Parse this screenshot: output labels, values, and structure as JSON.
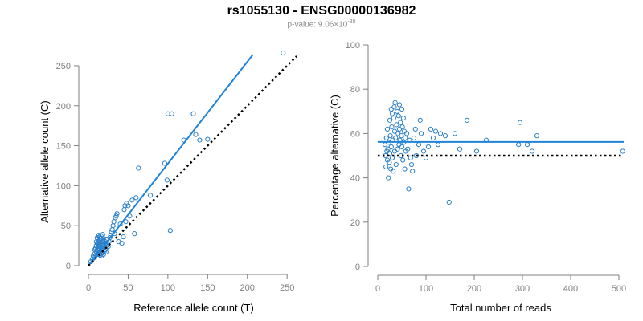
{
  "title": "rs1055130 - ENSG00000136982",
  "subtitle": {
    "prefix": "p-value: 9.06×10",
    "exponent": "-38"
  },
  "colors": {
    "accent": "#1f83d9",
    "points": "#2b7fc8",
    "axis": "#7f7f7f",
    "text": "#000000"
  },
  "chart_data": [
    {
      "type": "scatter",
      "xlabel": "Reference allele count (T)",
      "ylabel": "Alternative allele count (C)",
      "xlim": [
        0,
        265
      ],
      "ylim": [
        0,
        260
      ],
      "xticks": [
        0,
        50,
        100,
        150,
        200,
        250
      ],
      "yticks": [
        0,
        50,
        100,
        150,
        200,
        250
      ],
      "grid": false,
      "points": {
        "x": [
          3,
          5,
          6,
          7,
          8,
          8,
          9,
          9,
          10,
          10,
          10,
          11,
          11,
          11,
          11,
          12,
          12,
          12,
          12,
          13,
          13,
          13,
          13,
          13,
          14,
          14,
          14,
          14,
          14,
          15,
          15,
          15,
          15,
          15,
          16,
          16,
          16,
          16,
          17,
          17,
          17,
          17,
          18,
          18,
          18,
          18,
          19,
          19,
          19,
          20,
          20,
          20,
          21,
          21,
          22,
          22,
          23,
          23,
          24,
          25,
          26,
          27,
          28,
          29,
          30,
          31,
          32,
          33,
          34,
          35,
          36,
          38,
          40,
          42,
          44,
          45,
          46,
          47,
          48,
          50,
          52,
          55,
          58,
          60,
          63,
          78,
          96,
          99,
          100,
          103,
          105,
          120,
          132,
          135,
          140,
          150,
          245
        ],
        "y": [
          5,
          8,
          12,
          10,
          15,
          20,
          13,
          22,
          18,
          25,
          30,
          14,
          20,
          28,
          35,
          12,
          19,
          24,
          33,
          16,
          22,
          27,
          31,
          38,
          14,
          20,
          26,
          30,
          36,
          13,
          18,
          24,
          29,
          34,
          15,
          21,
          28,
          37,
          12,
          19,
          25,
          32,
          16,
          22,
          30,
          39,
          14,
          26,
          34,
          18,
          23,
          31,
          20,
          28,
          17,
          25,
          22,
          33,
          27,
          24,
          30,
          35,
          38,
          42,
          45,
          50,
          55,
          40,
          60,
          62,
          65,
          30,
          52,
          28,
          36,
          70,
          75,
          55,
          78,
          75,
          62,
          82,
          40,
          85,
          122,
          88,
          128,
          107,
          190,
          44,
          190,
          157,
          190,
          164,
          157,
          158,
          266
        ]
      },
      "series": [
        {
          "name": "",
          "style": "solid",
          "color": "#1f83d9",
          "x": [
            0,
            207
          ],
          "y": [
            0,
            264
          ]
        },
        {
          "name": "",
          "style": "dotted",
          "color": "#000000",
          "x": [
            0,
            262
          ],
          "y": [
            0,
            262
          ]
        }
      ]
    },
    {
      "type": "scatter",
      "xlabel": "Total number of reads",
      "ylabel": "Percentage alternative (C)",
      "xlim": [
        0,
        510
      ],
      "ylim": [
        0,
        100
      ],
      "xticks": [
        0,
        100,
        200,
        300,
        400,
        500
      ],
      "yticks": [
        0,
        20,
        40,
        60,
        80,
        100
      ],
      "grid": false,
      "points": {
        "x": [
          15,
          16,
          17,
          18,
          19,
          20,
          20,
          21,
          22,
          23,
          24,
          25,
          25,
          26,
          27,
          28,
          28,
          29,
          30,
          30,
          31,
          32,
          33,
          34,
          35,
          35,
          36,
          37,
          38,
          39,
          40,
          41,
          42,
          43,
          44,
          45,
          45,
          46,
          47,
          48,
          49,
          50,
          50,
          51,
          52,
          53,
          54,
          55,
          56,
          57,
          58,
          60,
          62,
          64,
          66,
          68,
          70,
          72,
          75,
          78,
          80,
          85,
          88,
          90,
          95,
          100,
          105,
          110,
          115,
          120,
          125,
          130,
          140,
          148,
          160,
          170,
          185,
          205,
          225,
          292,
          295,
          310,
          320,
          330,
          508
        ],
        "y": [
          55,
          50,
          45,
          58,
          52,
          48,
          62,
          53,
          40,
          56,
          47,
          66,
          51,
          59,
          44,
          71,
          54,
          63,
          49,
          69,
          57,
          43,
          67,
          72,
          52,
          61,
          74,
          58,
          46,
          64,
          70,
          53,
          60,
          68,
          55,
          62,
          73,
          57,
          65,
          50,
          59,
          71,
          54,
          63,
          48,
          67,
          56,
          61,
          44,
          58,
          52,
          60,
          53,
          35,
          57,
          49,
          46,
          43,
          58,
          62,
          50,
          55,
          66,
          60,
          52,
          49,
          54,
          62,
          58,
          61,
          55,
          60,
          59,
          29,
          60,
          53,
          66,
          52,
          57,
          55,
          65,
          55,
          52,
          59,
          52
        ]
      },
      "series": [
        {
          "name": "",
          "style": "solid",
          "color": "#1f83d9",
          "x": [
            0,
            510
          ],
          "y": [
            56.2,
            56.2
          ]
        },
        {
          "name": "",
          "style": "dotted",
          "color": "#000000",
          "x": [
            0,
            510
          ],
          "y": [
            50,
            50
          ]
        }
      ]
    }
  ]
}
